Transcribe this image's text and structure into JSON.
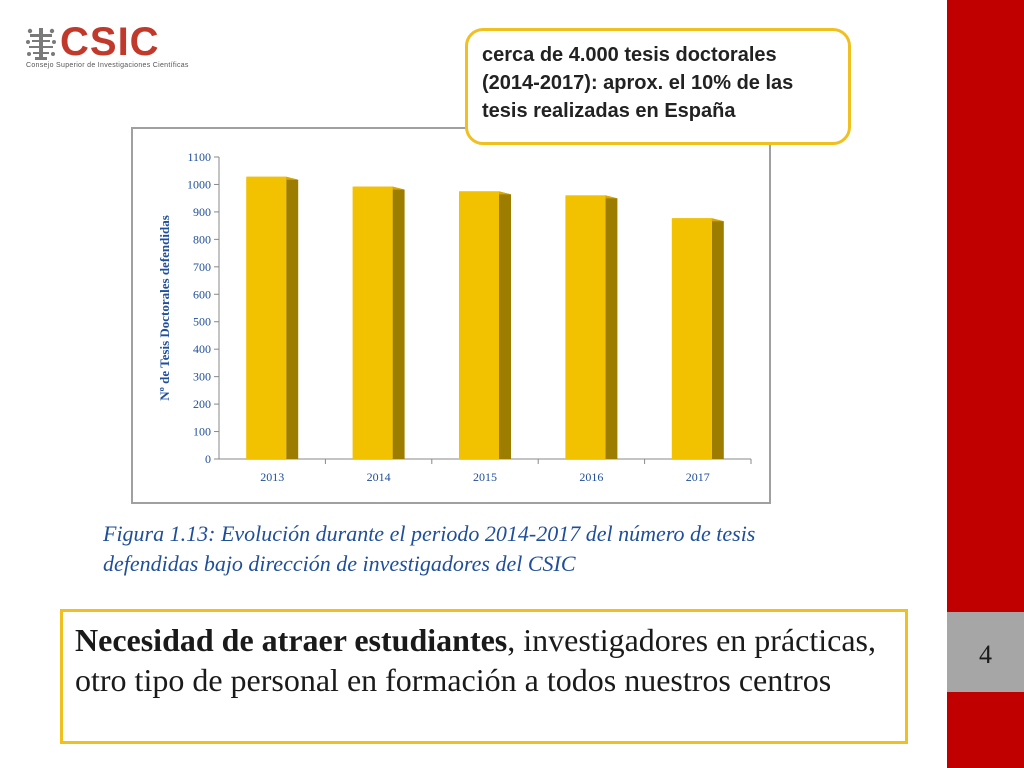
{
  "logo": {
    "name": "CSIC",
    "subtitle": "Consejo Superior de Investigaciones Científicas"
  },
  "callout": {
    "text": "cerca de 4.000 tesis doctorales (2014-2017): aprox. el 10% de las tesis realizadas en España"
  },
  "caption": {
    "text": "Figura 1.13: Evolución durante el periodo 2014-2017 del número de tesis defendidas bajo dirección de investigadores del CSIC"
  },
  "bottom": {
    "bold": "Necesidad de atraer estudiantes",
    "rest": ", investigadores en prácticas,  otro tipo de personal en formación a todos nuestros centros"
  },
  "page": {
    "number": "4"
  },
  "colors": {
    "accent_red": "#c00000",
    "bar_front": "#f2c200",
    "bar_side": "#9c7d00",
    "highlight": "#f0c020",
    "axis_label": "#1f4e9a"
  },
  "chart_data": {
    "type": "bar",
    "categories": [
      "2013",
      "2014",
      "2015",
      "2016",
      "2017"
    ],
    "values": [
      1028,
      992,
      975,
      960,
      877
    ],
    "title": "",
    "xlabel": "",
    "ylabel": "Nº de Tesis Doctorales defendidas",
    "ylim": [
      0,
      1100
    ],
    "yticks": [
      0,
      100,
      200,
      300,
      400,
      500,
      600,
      700,
      800,
      900,
      1000,
      1100
    ],
    "grid": false,
    "legend": "none"
  }
}
